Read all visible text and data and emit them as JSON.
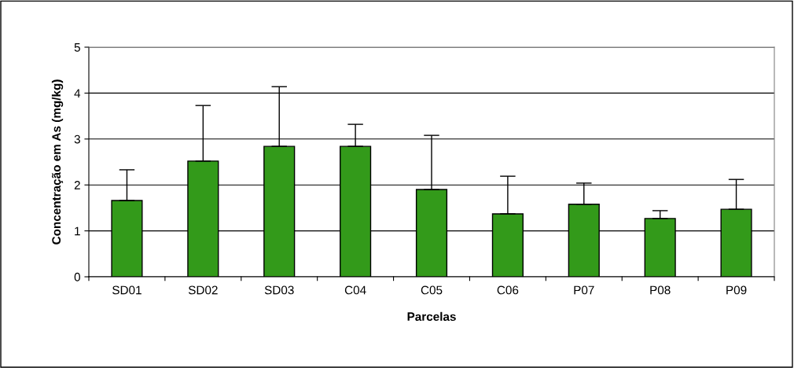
{
  "chart_data": {
    "type": "bar",
    "xlabel": "Parcelas",
    "ylabel": "Concentração em As (mg/kg)",
    "categories": [
      "SD01",
      "SD02",
      "SD03",
      "C04",
      "C05",
      "C06",
      "P07",
      "P08",
      "P09"
    ],
    "values": [
      1.66,
      2.52,
      2.84,
      2.84,
      1.9,
      1.37,
      1.58,
      1.27,
      1.47
    ],
    "errors": [
      [
        1.66,
        2.33
      ],
      [
        2.52,
        3.73
      ],
      [
        2.84,
        4.14
      ],
      [
        2.84,
        3.32
      ],
      [
        1.9,
        3.08
      ],
      [
        1.37,
        2.19
      ],
      [
        1.58,
        2.04
      ],
      [
        1.27,
        1.44
      ],
      [
        1.47,
        2.12
      ]
    ],
    "color": "#339a1a",
    "ylim": [
      0,
      5
    ],
    "yticks": [
      0,
      1,
      2,
      3,
      4,
      5
    ],
    "grid": "y",
    "legend": false
  }
}
